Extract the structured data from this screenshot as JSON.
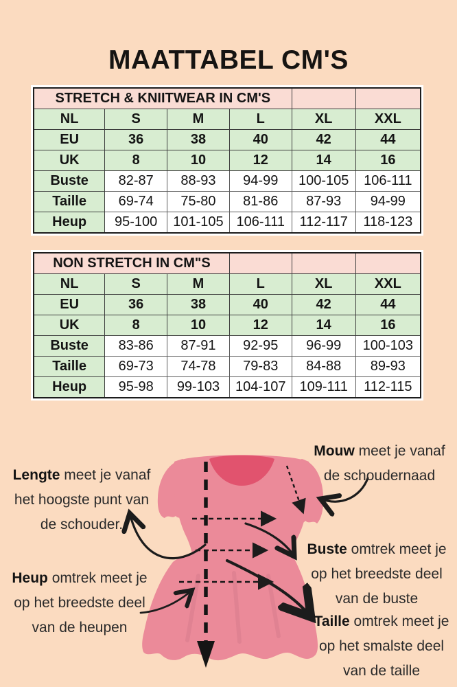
{
  "page": {
    "title": "MAATTABEL CM'S",
    "background_color": "#fbdbc0",
    "table_header_color": "#fadcd4",
    "table_green_color": "#d8edd1"
  },
  "tables": [
    {
      "title": "STRETCH & KNIITWEAR IN CM'S",
      "title_colspan": 4,
      "empty_header_cells": 2,
      "rows": [
        {
          "label": "NL",
          "style": "green",
          "values": [
            "S",
            "M",
            "L",
            "XL",
            "XXL"
          ]
        },
        {
          "label": "EU",
          "style": "green",
          "values": [
            "36",
            "38",
            "40",
            "42",
            "44"
          ]
        },
        {
          "label": "UK",
          "style": "green",
          "values": [
            "8",
            "10",
            "12",
            "14",
            "16"
          ]
        },
        {
          "label": "Buste",
          "style": "white",
          "values": [
            "82-87",
            "88-93",
            "94-99",
            "100-105",
            "106-111"
          ]
        },
        {
          "label": "Taille",
          "style": "white",
          "values": [
            "69-74",
            "75-80",
            "81-86",
            "87-93",
            "94-99"
          ]
        },
        {
          "label": "Heup",
          "style": "white",
          "values": [
            "95-100",
            "101-105",
            "106-111",
            "112-117",
            "118-123"
          ]
        }
      ]
    },
    {
      "title": "NON STRETCH IN CM\"S",
      "title_colspan": 3,
      "empty_header_cells": 3,
      "rows": [
        {
          "label": "NL",
          "style": "green",
          "values": [
            "S",
            "M",
            "L",
            "XL",
            "XXL"
          ]
        },
        {
          "label": "EU",
          "style": "green",
          "values": [
            "36",
            "38",
            "40",
            "42",
            "44"
          ]
        },
        {
          "label": "UK",
          "style": "green",
          "values": [
            "8",
            "10",
            "12",
            "14",
            "16"
          ]
        },
        {
          "label": "Buste",
          "style": "white",
          "values": [
            "83-86",
            "87-91",
            "92-95",
            "96-99",
            "100-103"
          ]
        },
        {
          "label": "Taille",
          "style": "white",
          "values": [
            "69-73",
            "74-78",
            "79-83",
            "84-88",
            "89-93"
          ]
        },
        {
          "label": "Heup",
          "style": "white",
          "values": [
            "95-98",
            "99-103",
            "104-107",
            "109-111",
            "112-115"
          ]
        }
      ]
    }
  ],
  "diagram": {
    "dress_color": "#eb8a99",
    "neckline_color": "#e1536e",
    "arrow_color": "#1c1c1c",
    "annotations": {
      "lengte": {
        "lead": "Lengte",
        "rest": "meet je vanaf het hoogste punt van de schouder."
      },
      "mouw": {
        "lead": "Mouw",
        "rest": "meet je vanaf de schoudernaad"
      },
      "buste": {
        "lead": "Buste",
        "rest": "omtrek meet je op het breedste deel van de buste"
      },
      "heup": {
        "lead": "Heup",
        "rest": "omtrek meet je op het breedste deel van de heupen"
      },
      "taille": {
        "lead": "Taille",
        "rest": "omtrek meet je op het smalste deel van de taille"
      }
    }
  }
}
